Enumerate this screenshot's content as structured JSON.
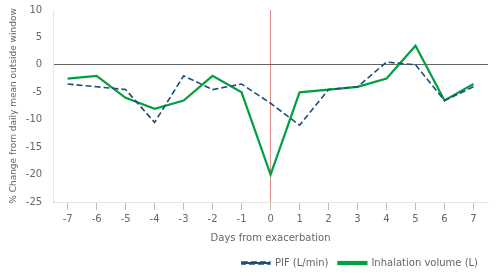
{
  "chart_data": {
    "type": "line",
    "xlabel": "Days from exacerbation",
    "ylabel": "% Change from daily mean outside window",
    "x": [
      -7,
      -6,
      -5,
      -4,
      -3,
      -2,
      -1,
      0,
      1,
      2,
      3,
      4,
      5,
      6,
      7
    ],
    "series": [
      {
        "name": "PIF (L/min)",
        "color": "#1a4f7a",
        "line_style": "dashed",
        "values": [
          -3.5,
          -4.0,
          -4.5,
          -10.5,
          -2.0,
          -4.5,
          -3.5,
          -7.0,
          -11.0,
          -4.5,
          -4.0,
          0.5,
          0.0,
          -6.5,
          -4.0
        ]
      },
      {
        "name": "Inhalation volume (L)",
        "color": "#00a040",
        "line_style": "solid",
        "values": [
          -2.5,
          -2.0,
          -6.0,
          -8.0,
          -6.5,
          -2.0,
          -5.0,
          -20.0,
          -5.0,
          -4.5,
          -4.0,
          -2.5,
          3.5,
          -6.5,
          -3.5
        ]
      }
    ],
    "xlim": [
      -7.5,
      7.5
    ],
    "xticks": [
      -7,
      -6,
      -5,
      -4,
      -3,
      -2,
      -1,
      0,
      1,
      2,
      3,
      4,
      5,
      6,
      7
    ],
    "ylim": [
      -25,
      10
    ],
    "yticks": [
      -25,
      -20,
      -15,
      -10,
      -5,
      0,
      5,
      10
    ],
    "grid": false,
    "legend": "lower right"
  }
}
